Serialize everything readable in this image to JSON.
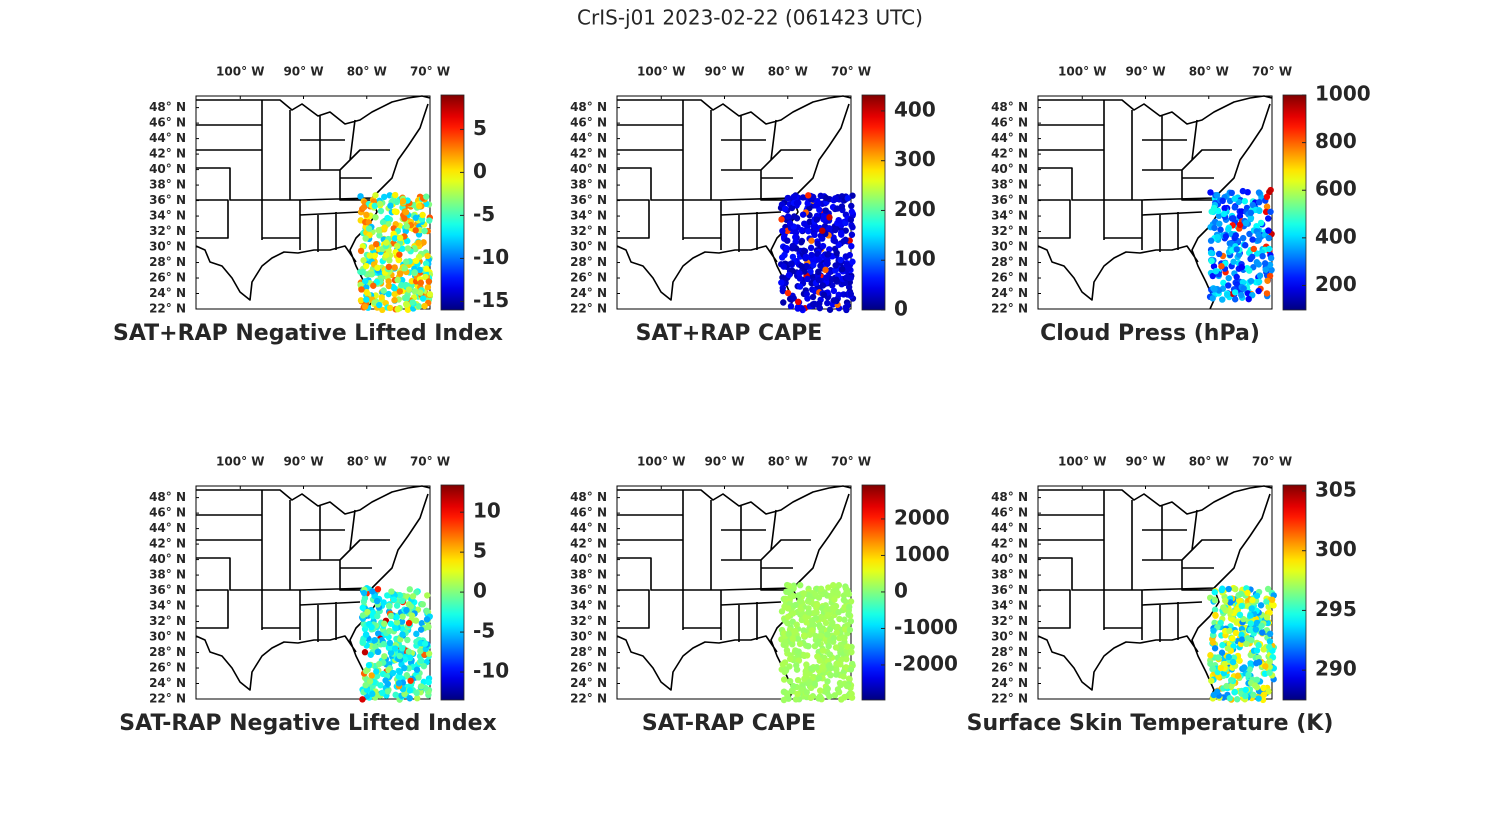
{
  "title": "CrIS-j01 2023-02-22 (061423 UTC)",
  "chart_data": [
    {
      "type": "map",
      "title": "SAT+RAP Negative Lifted Index",
      "xlim": [
        -107,
        -70
      ],
      "xticks": [
        {
          "value": -100,
          "label": "100° W"
        },
        {
          "value": -90,
          "label": "90° W"
        },
        {
          "value": -80,
          "label": "80° W"
        },
        {
          "value": -70,
          "label": "70° W"
        }
      ],
      "ylim": [
        22,
        49.5
      ],
      "yticks": [
        {
          "value": 22,
          "label": "22° N"
        },
        {
          "value": 24,
          "label": "24° N"
        },
        {
          "value": 26,
          "label": "26° N"
        },
        {
          "value": 28,
          "label": "28° N"
        },
        {
          "value": 30,
          "label": "30° N"
        },
        {
          "value": 32,
          "label": "32° N"
        },
        {
          "value": 34,
          "label": "34° N"
        },
        {
          "value": 36,
          "label": "36° N"
        },
        {
          "value": 38,
          "label": "38° N"
        },
        {
          "value": 40,
          "label": "40° N"
        },
        {
          "value": 42,
          "label": "42° N"
        },
        {
          "value": 44,
          "label": "44° N"
        },
        {
          "value": 46,
          "label": "46° N"
        },
        {
          "value": 48,
          "label": "48° N"
        }
      ],
      "colorbar": {
        "colormap": "jet",
        "lim": [
          -16,
          9
        ],
        "ticks": [
          -15,
          -10,
          -5,
          0,
          5
        ]
      }
    },
    {
      "type": "map",
      "title": "SAT+RAP CAPE",
      "xlim": [
        -107,
        -70
      ],
      "xticks": [
        {
          "value": -100,
          "label": "100° W"
        },
        {
          "value": -90,
          "label": "90° W"
        },
        {
          "value": -80,
          "label": "80° W"
        },
        {
          "value": -70,
          "label": "70° W"
        }
      ],
      "ylim": [
        22,
        49.5
      ],
      "yticks": [
        {
          "value": 22,
          "label": "22° N"
        },
        {
          "value": 24,
          "label": "24° N"
        },
        {
          "value": 26,
          "label": "26° N"
        },
        {
          "value": 28,
          "label": "28° N"
        },
        {
          "value": 30,
          "label": "30° N"
        },
        {
          "value": 32,
          "label": "32° N"
        },
        {
          "value": 34,
          "label": "34° N"
        },
        {
          "value": 36,
          "label": "36° N"
        },
        {
          "value": 38,
          "label": "38° N"
        },
        {
          "value": 40,
          "label": "40° N"
        },
        {
          "value": 42,
          "label": "42° N"
        },
        {
          "value": 44,
          "label": "44° N"
        },
        {
          "value": 46,
          "label": "46° N"
        },
        {
          "value": 48,
          "label": "48° N"
        }
      ],
      "colorbar": {
        "colormap": "jet",
        "lim": [
          0,
          432
        ],
        "ticks": [
          0,
          100,
          200,
          300,
          400
        ]
      }
    },
    {
      "type": "map",
      "title": "Cloud Press (hPa)",
      "xlim": [
        -107,
        -70
      ],
      "xticks": [
        {
          "value": -100,
          "label": "100° W"
        },
        {
          "value": -90,
          "label": "90° W"
        },
        {
          "value": -80,
          "label": "80° W"
        },
        {
          "value": -70,
          "label": "70° W"
        }
      ],
      "ylim": [
        22,
        49.5
      ],
      "yticks": [
        {
          "value": 22,
          "label": "22° N"
        },
        {
          "value": 24,
          "label": "24° N"
        },
        {
          "value": 26,
          "label": "26° N"
        },
        {
          "value": 28,
          "label": "28° N"
        },
        {
          "value": 30,
          "label": "30° N"
        },
        {
          "value": 32,
          "label": "32° N"
        },
        {
          "value": 34,
          "label": "34° N"
        },
        {
          "value": 36,
          "label": "36° N"
        },
        {
          "value": 38,
          "label": "38° N"
        },
        {
          "value": 40,
          "label": "40° N"
        },
        {
          "value": 42,
          "label": "42° N"
        },
        {
          "value": 44,
          "label": "44° N"
        },
        {
          "value": 46,
          "label": "46° N"
        },
        {
          "value": 48,
          "label": "48° N"
        }
      ],
      "colorbar": {
        "colormap": "jet",
        "lim": [
          97,
          1000
        ],
        "ticks": [
          200,
          400,
          600,
          800,
          1000
        ]
      }
    },
    {
      "type": "map",
      "title": "SAT-RAP Negative Lifted Index",
      "xlim": [
        -107,
        -70
      ],
      "xticks": [
        {
          "value": -100,
          "label": "100° W"
        },
        {
          "value": -90,
          "label": "90° W"
        },
        {
          "value": -80,
          "label": "80° W"
        },
        {
          "value": -70,
          "label": "70° W"
        }
      ],
      "ylim": [
        22,
        49.5
      ],
      "yticks": [
        {
          "value": 22,
          "label": "22° N"
        },
        {
          "value": 24,
          "label": "24° N"
        },
        {
          "value": 26,
          "label": "26° N"
        },
        {
          "value": 28,
          "label": "28° N"
        },
        {
          "value": 30,
          "label": "30° N"
        },
        {
          "value": 32,
          "label": "32° N"
        },
        {
          "value": 34,
          "label": "34° N"
        },
        {
          "value": 36,
          "label": "36° N"
        },
        {
          "value": 38,
          "label": "38° N"
        },
        {
          "value": 40,
          "label": "40° N"
        },
        {
          "value": 42,
          "label": "42° N"
        },
        {
          "value": 44,
          "label": "44° N"
        },
        {
          "value": 46,
          "label": "46° N"
        },
        {
          "value": 48,
          "label": "48° N"
        }
      ],
      "colorbar": {
        "colormap": "jet",
        "lim": [
          -13.5,
          13.4
        ],
        "ticks": [
          -10,
          -5,
          0,
          5,
          10
        ]
      }
    },
    {
      "type": "map",
      "title": "SAT-RAP CAPE",
      "xlim": [
        -107,
        -70
      ],
      "xticks": [
        {
          "value": -100,
          "label": "100° W"
        },
        {
          "value": -90,
          "label": "90° W"
        },
        {
          "value": -80,
          "label": "80° W"
        },
        {
          "value": -70,
          "label": "70° W"
        }
      ],
      "ylim": [
        22,
        49.5
      ],
      "yticks": [
        {
          "value": 22,
          "label": "22° N"
        },
        {
          "value": 24,
          "label": "24° N"
        },
        {
          "value": 26,
          "label": "26° N"
        },
        {
          "value": 28,
          "label": "28° N"
        },
        {
          "value": 30,
          "label": "30° N"
        },
        {
          "value": 32,
          "label": "32° N"
        },
        {
          "value": 34,
          "label": "34° N"
        },
        {
          "value": 36,
          "label": "36° N"
        },
        {
          "value": 38,
          "label": "38° N"
        },
        {
          "value": 40,
          "label": "40° N"
        },
        {
          "value": 42,
          "label": "42° N"
        },
        {
          "value": 44,
          "label": "44° N"
        },
        {
          "value": 46,
          "label": "46° N"
        },
        {
          "value": 48,
          "label": "48° N"
        }
      ],
      "colorbar": {
        "colormap": "jet",
        "lim": [
          -2960,
          2930
        ],
        "ticks": [
          -2000,
          -1000,
          0,
          1000,
          2000
        ]
      }
    },
    {
      "type": "map",
      "title": "Surface Skin Temperature (K)",
      "xlim": [
        -107,
        -70
      ],
      "xticks": [
        {
          "value": -100,
          "label": "100° W"
        },
        {
          "value": -90,
          "label": "90° W"
        },
        {
          "value": -80,
          "label": "80° W"
        },
        {
          "value": -70,
          "label": "70° W"
        }
      ],
      "ylim": [
        22,
        49.5
      ],
      "yticks": [
        {
          "value": 22,
          "label": "22° N"
        },
        {
          "value": 24,
          "label": "24° N"
        },
        {
          "value": 26,
          "label": "26° N"
        },
        {
          "value": 28,
          "label": "28° N"
        },
        {
          "value": 30,
          "label": "30° N"
        },
        {
          "value": 32,
          "label": "32° N"
        },
        {
          "value": 34,
          "label": "34° N"
        },
        {
          "value": 36,
          "label": "36° N"
        },
        {
          "value": 38,
          "label": "38° N"
        },
        {
          "value": 40,
          "label": "40° N"
        },
        {
          "value": 42,
          "label": "42° N"
        },
        {
          "value": 44,
          "label": "44° N"
        },
        {
          "value": 46,
          "label": "46° N"
        },
        {
          "value": 48,
          "label": "48° N"
        }
      ],
      "colorbar": {
        "colormap": "jet",
        "lim": [
          287.5,
          305.5
        ],
        "ticks": [
          290,
          295,
          300,
          305
        ]
      }
    }
  ]
}
